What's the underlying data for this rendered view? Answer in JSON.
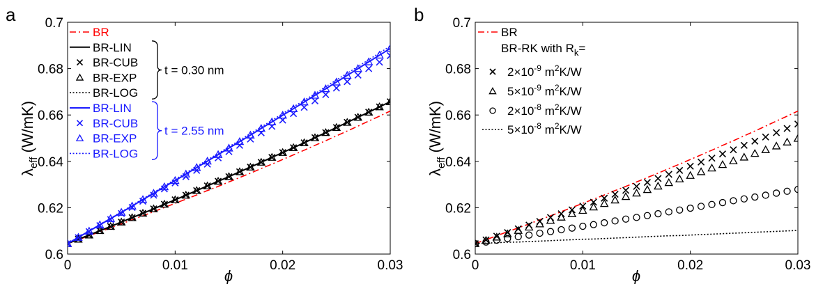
{
  "chart_data": [
    {
      "panel": "a",
      "type": "line",
      "xlabel": "ϕ",
      "ylabel_main": "λ",
      "ylabel_sub": "eff",
      "ylabel_units": " (W/mK)",
      "xlim": [
        0,
        0.03
      ],
      "ylim": [
        0.6,
        0.7
      ],
      "xticks": [
        0,
        0.01,
        0.02,
        0.03
      ],
      "xtick_labels": [
        "0",
        "0.01",
        "0.02",
        "0.03"
      ],
      "yticks": [
        0.6,
        0.62,
        0.64,
        0.66,
        0.68,
        0.7
      ],
      "ytick_labels": [
        "0.6",
        "0.62",
        "0.64",
        "0.66",
        "0.68",
        "0.7"
      ],
      "grid": false,
      "legend_position": "top-left",
      "groups": [
        {
          "label": "t = 0.30 nm",
          "color": "#000000",
          "series_indices": [
            1,
            2,
            3,
            4
          ]
        },
        {
          "label": "t = 2.55 nm",
          "color": "#1a1aff",
          "series_indices": [
            5,
            6,
            7,
            8
          ]
        }
      ],
      "x": [
        0,
        0.001,
        0.002,
        0.003,
        0.004,
        0.005,
        0.006,
        0.007,
        0.008,
        0.009,
        0.01,
        0.011,
        0.012,
        0.013,
        0.014,
        0.015,
        0.016,
        0.017,
        0.018,
        0.019,
        0.02,
        0.021,
        0.022,
        0.023,
        0.024,
        0.025,
        0.026,
        0.027,
        0.028,
        0.029,
        0.03
      ],
      "series": [
        {
          "name": "BR",
          "color": "#ff0000",
          "style": "dashdot",
          "marker": "none",
          "values": [
            0.6045,
            0.6062,
            0.6079,
            0.6096,
            0.6113,
            0.613,
            0.6148,
            0.6165,
            0.6183,
            0.6201,
            0.6219,
            0.6237,
            0.6255,
            0.6274,
            0.6292,
            0.6311,
            0.633,
            0.6349,
            0.6369,
            0.6388,
            0.6408,
            0.6428,
            0.6448,
            0.6469,
            0.6489,
            0.651,
            0.6531,
            0.6552,
            0.6574,
            0.6595,
            0.6617
          ]
        },
        {
          "name": "BR-LIN",
          "color": "#000000",
          "style": "solid",
          "marker": "none",
          "values": [
            0.6045,
            0.6064,
            0.6082,
            0.6101,
            0.6119,
            0.6138,
            0.6157,
            0.6176,
            0.6195,
            0.6215,
            0.6234,
            0.6254,
            0.6274,
            0.6294,
            0.6314,
            0.6334,
            0.6355,
            0.6375,
            0.6396,
            0.6417,
            0.6438,
            0.6459,
            0.648,
            0.6502,
            0.6524,
            0.6546,
            0.6568,
            0.659,
            0.6612,
            0.6635,
            0.6657
          ]
        },
        {
          "name": "BR-CUB",
          "color": "#000000",
          "style": "none",
          "marker": "x",
          "values": [
            0.6045,
            0.6064,
            0.6082,
            0.6101,
            0.6119,
            0.6138,
            0.6157,
            0.6176,
            0.6195,
            0.6215,
            0.6234,
            0.6254,
            0.6274,
            0.6294,
            0.6314,
            0.6334,
            0.6355,
            0.6375,
            0.6396,
            0.6417,
            0.6438,
            0.6459,
            0.648,
            0.6502,
            0.6524,
            0.6546,
            0.6568,
            0.659,
            0.6612,
            0.6635,
            0.6657
          ]
        },
        {
          "name": "BR-EXP",
          "color": "#000000",
          "style": "none",
          "marker": "triangle",
          "values": [
            0.6045,
            0.6064,
            0.6082,
            0.6101,
            0.6119,
            0.6138,
            0.6157,
            0.6176,
            0.6195,
            0.6215,
            0.6234,
            0.6254,
            0.6274,
            0.6294,
            0.6314,
            0.6334,
            0.6355,
            0.6375,
            0.6396,
            0.6417,
            0.6438,
            0.6459,
            0.648,
            0.6502,
            0.6524,
            0.6546,
            0.6568,
            0.659,
            0.6612,
            0.6635,
            0.6657
          ]
        },
        {
          "name": "BR-LOG",
          "color": "#000000",
          "style": "dotted",
          "marker": "none",
          "values": [
            0.6045,
            0.6064,
            0.6082,
            0.6101,
            0.6119,
            0.6138,
            0.6157,
            0.6176,
            0.6195,
            0.6215,
            0.6234,
            0.6254,
            0.6274,
            0.6294,
            0.6314,
            0.6334,
            0.6355,
            0.6375,
            0.6396,
            0.6417,
            0.6438,
            0.6459,
            0.648,
            0.6502,
            0.6524,
            0.6546,
            0.6568,
            0.659,
            0.6612,
            0.6635,
            0.6657
          ]
        },
        {
          "name": "BR-LIN",
          "color": "#1a1aff",
          "style": "solid",
          "marker": "none",
          "values": [
            0.6045,
            0.6072,
            0.6099,
            0.6126,
            0.6153,
            0.618,
            0.6207,
            0.6235,
            0.6262,
            0.629,
            0.6317,
            0.6345,
            0.6373,
            0.6401,
            0.6429,
            0.6457,
            0.6485,
            0.6513,
            0.6542,
            0.657,
            0.6599,
            0.6627,
            0.6656,
            0.6685,
            0.6713,
            0.6742,
            0.6771,
            0.68,
            0.6829,
            0.6858,
            0.6887
          ]
        },
        {
          "name": "BR-CUB",
          "color": "#1a1aff",
          "style": "none",
          "marker": "x",
          "values": [
            0.6045,
            0.6071,
            0.6097,
            0.6123,
            0.6149,
            0.6175,
            0.6201,
            0.6228,
            0.6254,
            0.6281,
            0.6307,
            0.6334,
            0.6361,
            0.6388,
            0.6415,
            0.6442,
            0.6469,
            0.6496,
            0.6523,
            0.6551,
            0.6578,
            0.6606,
            0.6633,
            0.6661,
            0.6688,
            0.6716,
            0.6744,
            0.6772,
            0.68,
            0.6828,
            0.6856
          ]
        },
        {
          "name": "BR-EXP",
          "color": "#1a1aff",
          "style": "none",
          "marker": "triangle",
          "values": [
            0.6045,
            0.6072,
            0.6099,
            0.6126,
            0.6153,
            0.618,
            0.6207,
            0.6235,
            0.6262,
            0.629,
            0.6317,
            0.6345,
            0.6373,
            0.6401,
            0.6429,
            0.6457,
            0.6485,
            0.6513,
            0.6542,
            0.657,
            0.6599,
            0.6627,
            0.6656,
            0.6685,
            0.6713,
            0.6742,
            0.6771,
            0.68,
            0.6829,
            0.6858,
            0.6887
          ]
        },
        {
          "name": "BR-LOG",
          "color": "#1a1aff",
          "style": "dotted",
          "marker": "none",
          "values": [
            0.6045,
            0.6073,
            0.61,
            0.6127,
            0.6155,
            0.6182,
            0.621,
            0.6238,
            0.6266,
            0.6294,
            0.6322,
            0.635,
            0.6378,
            0.6406,
            0.6434,
            0.6463,
            0.6491,
            0.652,
            0.6548,
            0.6577,
            0.6606,
            0.6635,
            0.6663,
            0.6692,
            0.6722,
            0.6751,
            0.678,
            0.6809,
            0.6838,
            0.6868,
            0.6897
          ]
        }
      ]
    },
    {
      "panel": "b",
      "type": "line",
      "xlabel": "ϕ",
      "ylabel_main": "λ",
      "ylabel_sub": "eff",
      "ylabel_units": " (W/mK)",
      "xlim": [
        0,
        0.03
      ],
      "ylim": [
        0.6,
        0.7
      ],
      "xticks": [
        0,
        0.01,
        0.02,
        0.03
      ],
      "xtick_labels": [
        "0",
        "0.01",
        "0.02",
        "0.03"
      ],
      "yticks": [
        0.6,
        0.62,
        0.64,
        0.66,
        0.68,
        0.7
      ],
      "ytick_labels": [
        "0.6",
        "0.62",
        "0.64",
        "0.66",
        "0.68",
        "0.7"
      ],
      "grid": false,
      "legend_position": "top-left",
      "legend_header": {
        "main": "BR-RK with R",
        "sub": "k",
        "tail": "="
      },
      "x": [
        0,
        0.001,
        0.002,
        0.003,
        0.004,
        0.005,
        0.006,
        0.007,
        0.008,
        0.009,
        0.01,
        0.011,
        0.012,
        0.013,
        0.014,
        0.015,
        0.016,
        0.017,
        0.018,
        0.019,
        0.02,
        0.021,
        0.022,
        0.023,
        0.024,
        0.025,
        0.026,
        0.027,
        0.028,
        0.029,
        0.03
      ],
      "series": [
        {
          "name": "BR",
          "color": "#ff0000",
          "style": "dashdot",
          "marker": "none",
          "values": [
            0.6045,
            0.6062,
            0.6079,
            0.6096,
            0.6113,
            0.613,
            0.6148,
            0.6165,
            0.6183,
            0.6201,
            0.6219,
            0.6237,
            0.6255,
            0.6274,
            0.6292,
            0.6311,
            0.633,
            0.6349,
            0.6369,
            0.6388,
            0.6408,
            0.6428,
            0.6448,
            0.6469,
            0.6489,
            0.651,
            0.6531,
            0.6552,
            0.6574,
            0.6595,
            0.6617
          ]
        },
        {
          "name": "2×10⁻⁹ m²K/W",
          "label_pre": "2×10",
          "label_exp": "-9",
          "label_mid": " m",
          "label_exp2": "2",
          "label_post": "K/W",
          "color": "#000000",
          "style": "none",
          "marker": "x",
          "values": [
            0.6045,
            0.6061,
            0.6077,
            0.6093,
            0.6109,
            0.6125,
            0.6141,
            0.6158,
            0.6174,
            0.6191,
            0.6207,
            0.6224,
            0.6241,
            0.6258,
            0.6275,
            0.6292,
            0.6309,
            0.6326,
            0.6344,
            0.6361,
            0.6379,
            0.6397,
            0.6414,
            0.6432,
            0.645,
            0.6469,
            0.6487,
            0.6505,
            0.6524,
            0.6542,
            0.6561
          ]
        },
        {
          "name": "5×10⁻⁹ m²K/W",
          "label_pre": "5×10",
          "label_exp": "-9",
          "label_mid": " m",
          "label_exp2": "2",
          "label_post": "K/W",
          "color": "#000000",
          "style": "none",
          "marker": "triangle",
          "values": [
            0.6045,
            0.6059,
            0.6073,
            0.6087,
            0.6102,
            0.6116,
            0.613,
            0.6145,
            0.6159,
            0.6174,
            0.6188,
            0.6203,
            0.6218,
            0.6233,
            0.6248,
            0.6263,
            0.6278,
            0.6293,
            0.6308,
            0.6324,
            0.6339,
            0.6355,
            0.6371,
            0.6386,
            0.6402,
            0.6418,
            0.6434,
            0.645,
            0.6466,
            0.6483,
            0.6499
          ]
        },
        {
          "name": "2×10⁻⁸ m²K/W",
          "label_pre": "2×10",
          "label_exp": "-8",
          "label_mid": " m",
          "label_exp2": "2",
          "label_post": "K/W",
          "color": "#000000",
          "style": "none",
          "marker": "circle",
          "values": [
            0.6045,
            0.6052,
            0.606,
            0.6067,
            0.6075,
            0.6082,
            0.609,
            0.6097,
            0.6105,
            0.6112,
            0.612,
            0.6127,
            0.6135,
            0.6143,
            0.6151,
            0.6158,
            0.6166,
            0.6174,
            0.6182,
            0.619,
            0.6198,
            0.6206,
            0.6214,
            0.6222,
            0.623,
            0.6238,
            0.6246,
            0.6254,
            0.6263,
            0.6271,
            0.6279
          ]
        },
        {
          "name": "5×10⁻⁸ m²K/W",
          "label_pre": "5×10",
          "label_exp": "-8",
          "label_mid": " m",
          "label_exp2": "2",
          "label_post": "K/W",
          "color": "#000000",
          "style": "dotted",
          "marker": "none",
          "values": [
            0.6045,
            0.6047,
            0.6049,
            0.6051,
            0.6052,
            0.6054,
            0.6056,
            0.6058,
            0.606,
            0.6062,
            0.6064,
            0.6065,
            0.6067,
            0.6069,
            0.6071,
            0.6073,
            0.6075,
            0.6077,
            0.6079,
            0.608,
            0.6082,
            0.6084,
            0.6086,
            0.6088,
            0.609,
            0.6092,
            0.6094,
            0.6096,
            0.6098,
            0.61,
            0.6102
          ]
        }
      ]
    }
  ]
}
